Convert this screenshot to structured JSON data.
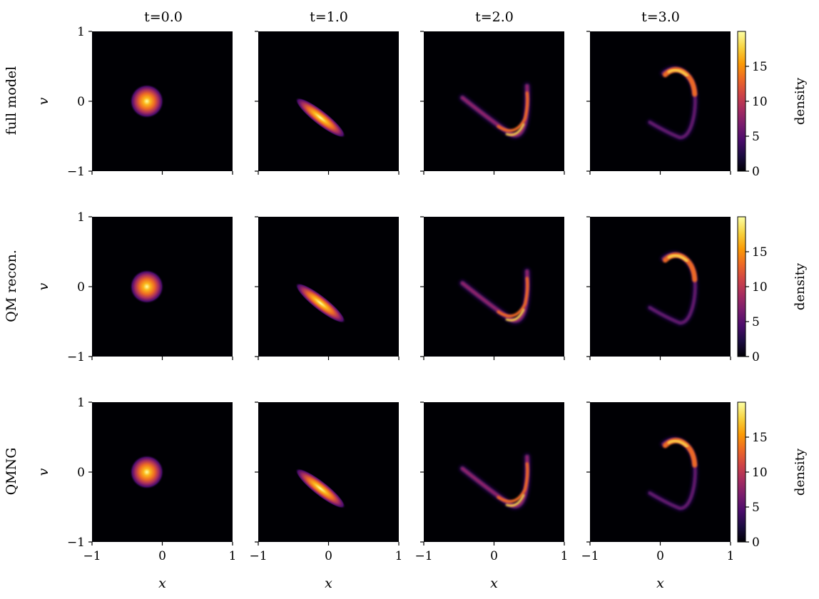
{
  "chart_data": {
    "type": "heatmap",
    "col_titles": [
      "t=0.0",
      "t=1.0",
      "t=2.0",
      "t=3.0"
    ],
    "row_labels": [
      "full model",
      "QM recon.",
      "QMNG"
    ],
    "xlabel": "x",
    "ylabel": "v",
    "xlim": [
      -1,
      1
    ],
    "ylim": [
      -1,
      1
    ],
    "x_ticks": [
      -1,
      0,
      1
    ],
    "y_ticks": [
      -1,
      0,
      1
    ],
    "x_tick_labels": [
      "−1",
      "0",
      "1"
    ],
    "y_tick_labels": [
      "−1",
      "0",
      "1"
    ],
    "colorbar": {
      "label": "density",
      "range": [
        0,
        20
      ],
      "ticks": [
        0,
        5,
        10,
        15
      ],
      "colormap": "inferno"
    },
    "colors": {
      "background": "#000004",
      "colormap_stops": [
        "#000004",
        "#1b0c41",
        "#4a0c6b",
        "#781c6d",
        "#a52c60",
        "#cf4446",
        "#ed6925",
        "#fb9b06",
        "#f7d13d",
        "#fcffa4"
      ]
    },
    "panel_features": [
      {
        "time": 0.0,
        "shape": "round blob",
        "center": [
          -0.22,
          0.0
        ],
        "peak_density": 20
      },
      {
        "time": 1.0,
        "shape": "elongated streak",
        "from": [
          -0.35,
          -0.05
        ],
        "to": [
          0.12,
          -0.42
        ],
        "peak_density": 18
      },
      {
        "time": 2.0,
        "shape": "curved arc",
        "from": [
          -0.45,
          0.05
        ],
        "through": [
          0.25,
          -0.48
        ],
        "to": [
          0.48,
          0.22
        ],
        "peak_density": 17
      },
      {
        "time": 3.0,
        "shape": "spiral arc",
        "from": [
          0.05,
          0.42
        ],
        "through": [
          0.45,
          0.25
        ],
        "to": [
          0.3,
          -0.52
        ],
        "peak_density": 16
      }
    ]
  }
}
